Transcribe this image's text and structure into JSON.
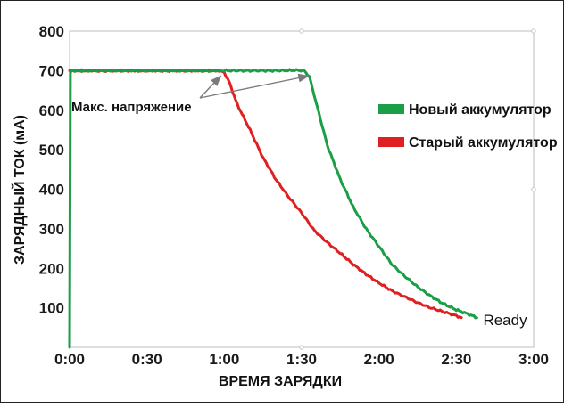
{
  "chart_data": {
    "type": "line",
    "title": "",
    "xlabel": "ВРЕМЯ ЗАРЯДКИ",
    "ylabel": "ЗАРЯДНЫЙ ТОК (мА)",
    "x_unit": "minutes",
    "xlim": [
      0,
      180
    ],
    "ylim": [
      0,
      800
    ],
    "x_ticks": [
      {
        "value": 0,
        "label": "0:00"
      },
      {
        "value": 30,
        "label": "0:30"
      },
      {
        "value": 60,
        "label": "1:00"
      },
      {
        "value": 90,
        "label": "1:30"
      },
      {
        "value": 120,
        "label": "2:00"
      },
      {
        "value": 150,
        "label": "2:30"
      },
      {
        "value": 180,
        "label": "3:00"
      }
    ],
    "y_ticks": [
      100,
      200,
      300,
      400,
      500,
      600,
      700,
      800
    ],
    "grid": false,
    "legend_position": "right",
    "series": [
      {
        "name": "Новый аккумулятор",
        "color": "#1a9e46",
        "x": [
          0,
          0.3,
          2,
          10,
          20,
          30,
          40,
          50,
          60,
          70,
          80,
          88,
          91,
          93,
          96,
          100,
          105,
          110,
          115,
          120,
          125,
          130,
          135,
          140,
          145,
          150,
          155,
          158
        ],
        "y": [
          0,
          700,
          700,
          700,
          700,
          700,
          700,
          700,
          700,
          700,
          700,
          701,
          700,
          685,
          610,
          510,
          425,
          355,
          300,
          255,
          210,
          180,
          153,
          130,
          110,
          95,
          83,
          75
        ]
      },
      {
        "name": "Старый аккумулятор",
        "color": "#e02020",
        "x": [
          0,
          10,
          20,
          30,
          40,
          50,
          58,
          60,
          62,
          65,
          70,
          75,
          80,
          85,
          90,
          95,
          100,
          105,
          110,
          115,
          120,
          125,
          130,
          135,
          140,
          145,
          150,
          152
        ],
        "y": [
          700,
          700,
          700,
          700,
          700,
          700,
          700,
          695,
          670,
          615,
          550,
          480,
          425,
          380,
          340,
          295,
          265,
          238,
          210,
          185,
          163,
          143,
          128,
          113,
          100,
          90,
          80,
          75
        ]
      }
    ],
    "annotations": [
      {
        "text": "Макс. напряжение",
        "arrow_targets": [
          {
            "x": 60,
            "y": 700
          },
          {
            "x": 94,
            "y": 700
          }
        ]
      },
      {
        "text": "Ready",
        "x": 158,
        "y": 70
      }
    ]
  }
}
